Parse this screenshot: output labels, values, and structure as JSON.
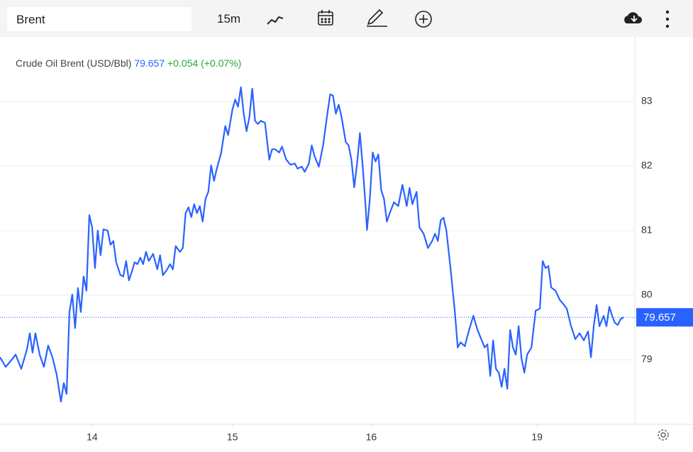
{
  "toolbar": {
    "symbol": "Brent",
    "interval": "15m"
  },
  "chart_data": {
    "type": "line",
    "title": "Crude Oil Brent (USD/Bbl)",
    "change": "+0.054 (+0.07%)",
    "x": [
      0,
      4,
      9,
      11,
      15,
      19,
      21,
      23,
      25,
      28,
      31,
      34,
      37,
      40,
      43,
      45,
      47,
      49,
      51,
      53,
      55,
      57,
      59,
      61,
      63,
      65,
      67,
      69,
      71,
      73,
      76,
      78,
      80,
      82,
      85,
      87,
      89,
      91,
      93,
      95,
      97,
      99,
      101,
      103,
      105,
      108,
      111,
      113,
      115,
      118,
      120,
      122,
      124,
      127,
      129,
      131,
      133,
      135,
      137,
      139,
      141,
      143,
      145,
      147,
      149,
      151,
      153,
      156,
      159,
      161,
      164,
      166,
      168,
      170,
      172,
      174,
      176,
      178,
      180,
      182,
      184,
      187,
      190,
      192,
      194,
      197,
      199,
      202,
      205,
      208,
      210,
      213,
      215,
      218,
      220,
      222,
      225,
      228,
      231,
      233,
      235,
      237,
      239,
      241,
      244,
      246,
      248,
      250,
      252,
      254,
      256,
      258,
      259,
      261,
      263,
      265,
      267,
      269,
      271,
      273,
      275,
      278,
      281,
      284,
      287,
      289,
      291,
      294,
      296,
      299,
      302,
      305,
      307,
      309,
      311,
      313,
      315,
      318,
      321,
      323,
      325,
      328,
      331,
      334,
      337,
      340,
      342,
      344,
      346,
      348,
      350,
      352,
      354,
      356,
      358,
      360,
      362,
      364,
      366,
      368,
      370,
      372,
      375,
      378,
      381,
      383,
      385,
      387,
      389,
      392,
      395,
      398,
      400,
      403,
      406,
      409,
      412,
      415,
      417,
      419,
      421,
      423,
      426,
      428,
      430,
      432,
      434,
      436,
      438,
      440
    ],
    "series": [
      {
        "name": "Crude Oil Brent (USD/Bbl)",
        "color": "#2962ff",
        "values": [
          79.04,
          78.89,
          79.02,
          79.08,
          78.86,
          79.16,
          79.41,
          79.11,
          79.41,
          79.08,
          78.89,
          79.22,
          79.04,
          78.77,
          78.35,
          78.64,
          78.47,
          79.74,
          80.01,
          79.49,
          80.11,
          79.74,
          80.29,
          80.07,
          81.24,
          81.05,
          80.42,
          81.0,
          80.62,
          81.02,
          81.0,
          80.78,
          80.84,
          80.51,
          80.31,
          80.29,
          80.53,
          80.23,
          80.36,
          80.51,
          80.48,
          80.58,
          80.48,
          80.67,
          80.53,
          80.64,
          80.4,
          80.62,
          80.31,
          80.4,
          80.48,
          80.4,
          80.76,
          80.67,
          80.73,
          81.27,
          81.36,
          81.21,
          81.41,
          81.27,
          81.38,
          81.14,
          81.49,
          81.6,
          82.01,
          81.77,
          81.96,
          82.2,
          82.62,
          82.48,
          82.87,
          83.03,
          82.92,
          83.22,
          82.81,
          82.54,
          82.76,
          83.2,
          82.7,
          82.65,
          82.7,
          82.67,
          82.1,
          82.26,
          82.26,
          82.21,
          82.3,
          82.1,
          82.02,
          82.04,
          81.96,
          81.99,
          81.91,
          82.04,
          82.32,
          82.15,
          81.99,
          82.32,
          82.81,
          83.11,
          83.09,
          82.81,
          82.95,
          82.76,
          82.37,
          82.32,
          82.1,
          81.67,
          82.04,
          82.51,
          81.99,
          81.38,
          81.01,
          81.49,
          82.21,
          82.07,
          82.18,
          81.63,
          81.49,
          81.14,
          81.27,
          81.44,
          81.38,
          81.71,
          81.38,
          81.66,
          81.41,
          81.6,
          81.05,
          80.95,
          80.73,
          80.84,
          80.95,
          80.84,
          81.16,
          81.2,
          81.0,
          80.4,
          79.74,
          79.19,
          79.27,
          79.21,
          79.46,
          79.68,
          79.46,
          79.3,
          79.19,
          79.24,
          78.75,
          79.3,
          78.86,
          78.8,
          78.58,
          78.86,
          78.55,
          79.46,
          79.19,
          79.08,
          79.52,
          79.02,
          78.8,
          79.08,
          79.19,
          79.76,
          79.79,
          80.53,
          80.42,
          80.45,
          80.12,
          80.07,
          79.93,
          79.85,
          79.79,
          79.52,
          79.32,
          79.41,
          79.3,
          79.44,
          79.04,
          79.52,
          79.85,
          79.52,
          79.68,
          79.52,
          79.82,
          79.68,
          79.57,
          79.54,
          79.63,
          79.657
        ]
      }
    ],
    "xlim": [
      0,
      448
    ],
    "xticks": [
      {
        "value": 65,
        "label": "14"
      },
      {
        "value": 164,
        "label": "15"
      },
      {
        "value": 262,
        "label": "16"
      },
      {
        "value": 379,
        "label": "19"
      }
    ],
    "ylim": [
      78,
      84
    ],
    "yticks": [
      79,
      80,
      81,
      82,
      83
    ],
    "grid": true,
    "change_color": "#22ab3c"
  }
}
